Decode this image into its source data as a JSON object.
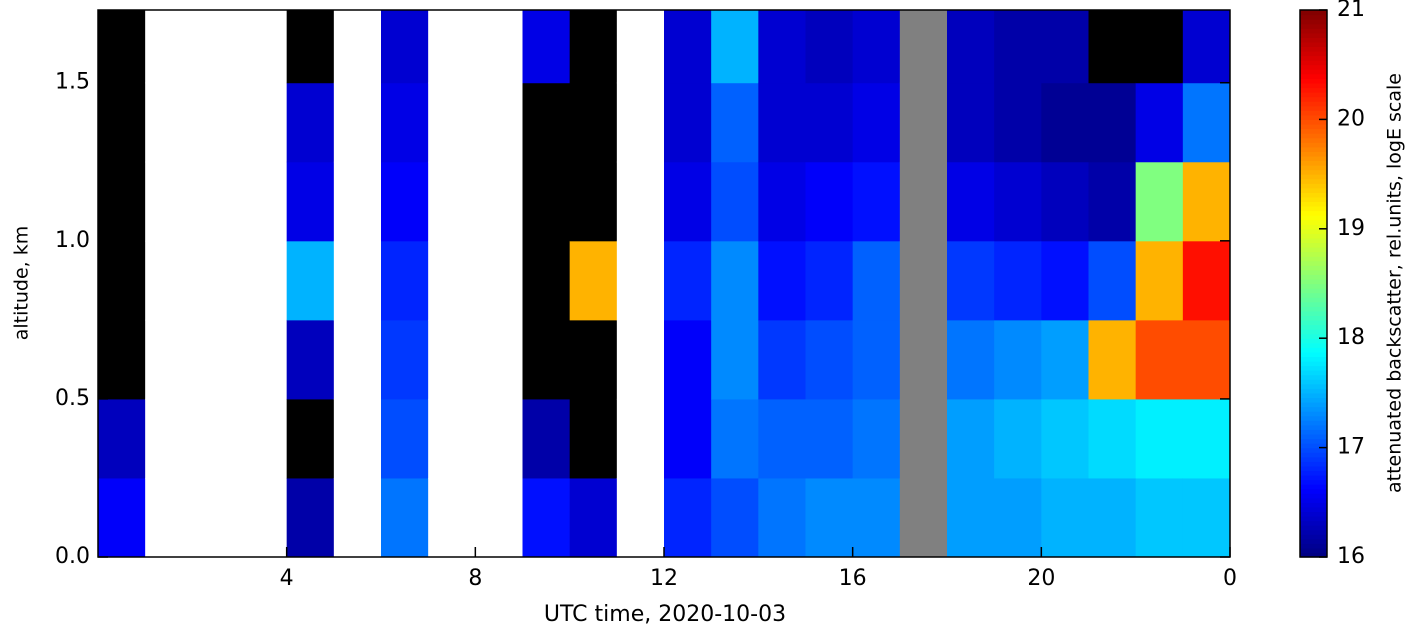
{
  "chart_data": {
    "type": "heatmap",
    "xlabel": "UTC time,  2020-10-03",
    "ylabel": "altitude, km",
    "colorbar_label": "attenuated backscatter, rel.units, logE scale",
    "colormap": "jet",
    "under_color": "#000000",
    "over_color": "#ffffff",
    "missing_color": "#808080",
    "x_edges": [
      0,
      1,
      2,
      3,
      4,
      5,
      6,
      7,
      8,
      9,
      10,
      11,
      12,
      13,
      14,
      15,
      16,
      17,
      18,
      19,
      20,
      21,
      22,
      23,
      24
    ],
    "y_edges": [
      0,
      0.25,
      0.5,
      0.75,
      1,
      1.25,
      1.5,
      1.75
    ],
    "z": [
      [
        16.6,
        16.3,
        15.8,
        15.8,
        15.8,
        15.8,
        15.8
      ],
      [
        21.5,
        21.5,
        21.5,
        21.5,
        21.5,
        21.5,
        21.5
      ],
      [
        21.5,
        21.5,
        21.5,
        21.5,
        21.5,
        21.5,
        21.5
      ],
      [
        21.5,
        21.5,
        21.5,
        21.5,
        21.5,
        21.5,
        21.5
      ],
      [
        16.2,
        15.9,
        16.3,
        17.5,
        16.5,
        16.4,
        15.9
      ],
      [
        21.5,
        21.5,
        21.5,
        21.5,
        21.5,
        21.5,
        21.5
      ],
      [
        17.2,
        17.0,
        16.9,
        16.8,
        16.6,
        16.5,
        16.4
      ],
      [
        21.5,
        21.5,
        21.5,
        21.5,
        21.5,
        21.5,
        21.5
      ],
      [
        21.5,
        21.5,
        21.5,
        21.5,
        21.5,
        21.5,
        21.5
      ],
      [
        16.7,
        16.2,
        15.8,
        15.8,
        15.8,
        15.8,
        16.5
      ],
      [
        16.4,
        15.8,
        15.9,
        19.5,
        15.8,
        15.8,
        15.8
      ],
      [
        21.5,
        21.5,
        21.5,
        21.5,
        21.5,
        21.5,
        21.5
      ],
      [
        16.8,
        16.6,
        16.6,
        16.8,
        16.5,
        16.4,
        16.4
      ],
      [
        17.0,
        17.2,
        17.3,
        17.3,
        17.0,
        17.1,
        17.5
      ],
      [
        17.2,
        17.1,
        16.9,
        16.7,
        16.5,
        16.4,
        16.4
      ],
      [
        17.3,
        17.1,
        17.0,
        16.8,
        16.6,
        16.4,
        16.3
      ],
      [
        17.3,
        17.2,
        17.1,
        17.1,
        16.7,
        16.5,
        16.4
      ],
      [
        null,
        null,
        null,
        null,
        null,
        null,
        null
      ],
      [
        17.4,
        17.4,
        17.2,
        16.9,
        16.5,
        16.3,
        16.3
      ],
      [
        17.4,
        17.5,
        17.3,
        16.8,
        16.4,
        16.2,
        16.2
      ],
      [
        17.5,
        17.6,
        17.4,
        16.7,
        16.3,
        16.1,
        16.2
      ],
      [
        17.5,
        17.7,
        19.5,
        17.0,
        16.2,
        16.1,
        15.9
      ],
      [
        17.6,
        17.8,
        20.0,
        19.5,
        18.5,
        16.5,
        15.9
      ],
      [
        17.6,
        17.8,
        20.0,
        20.3,
        19.5,
        17.2,
        16.4
      ]
    ],
    "xlim": [
      0,
      24
    ],
    "xticks": [
      4,
      8,
      12,
      16,
      20,
      {
        "value": 24,
        "label": "0"
      }
    ],
    "ylim": [
      0,
      1.73
    ],
    "yticks": [
      {
        "value": 0,
        "label": "0.0"
      },
      0.5,
      {
        "value": 1,
        "label": "1.0"
      },
      1.5
    ],
    "clim": [
      16,
      21
    ],
    "cticks": [
      16,
      17,
      18,
      19,
      20,
      21
    ]
  }
}
